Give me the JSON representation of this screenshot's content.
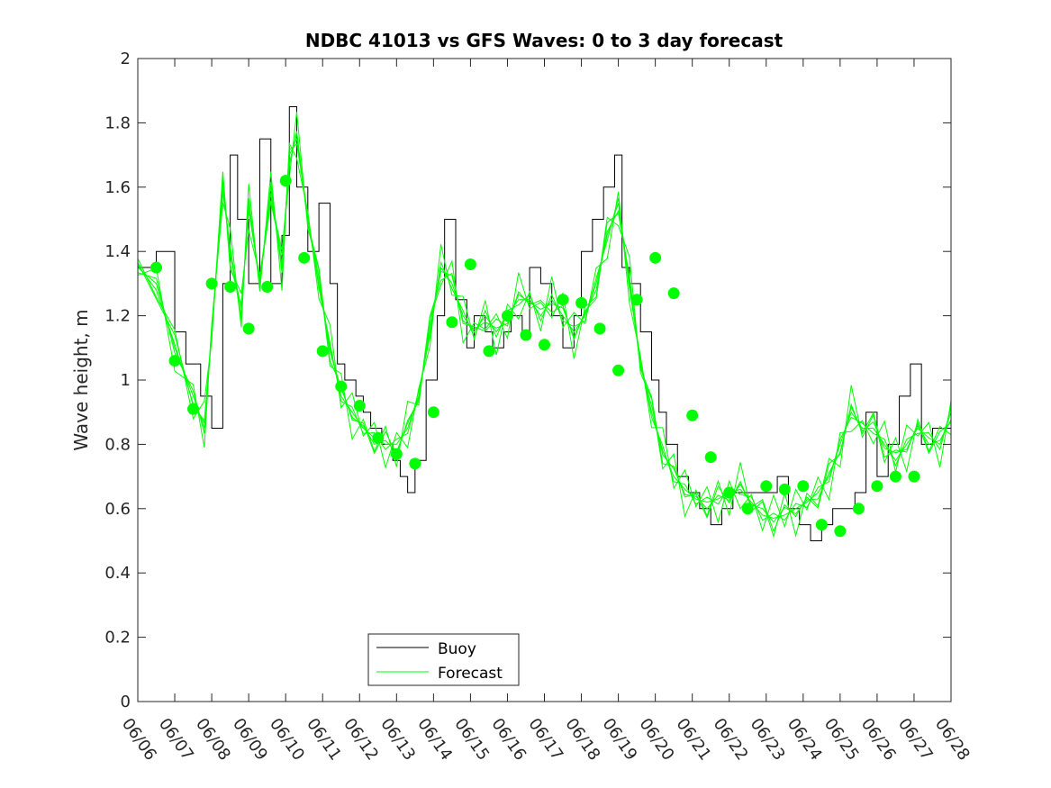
{
  "chart_data": {
    "type": "line",
    "title": "NDBC 41013 vs GFS Waves: 0 to 3 day forecast",
    "ylabel": "Wave height, m",
    "xlabel": "",
    "ylim": [
      0,
      2
    ],
    "yticks": [
      "0",
      "0.2",
      "0.4",
      "0.6",
      "0.8",
      "1",
      "1.2",
      "1.4",
      "1.6",
      "1.8",
      "2"
    ],
    "xticks": [
      "06/06",
      "06/07",
      "06/08",
      "06/09",
      "06/10",
      "06/11",
      "06/12",
      "06/13",
      "06/14",
      "06/15",
      "06/16",
      "06/17",
      "06/18",
      "06/19",
      "06/20",
      "06/21",
      "06/22",
      "06/23",
      "06/24",
      "06/25",
      "06/26",
      "06/27",
      "06/28"
    ],
    "xlim_days": [
      0,
      22
    ],
    "grid": false,
    "legend_position": "bottom-left",
    "colors": {
      "buoy": "#000000",
      "forecast": "#00ff00",
      "markers": "#00ff00"
    },
    "series": [
      {
        "name": "Buoy",
        "style": "line",
        "x": [
          0,
          0.5,
          1,
          1.3,
          1.5,
          1.7,
          2,
          2.3,
          2.5,
          2.7,
          3,
          3.3,
          3.6,
          3.9,
          4.1,
          4.3,
          4.6,
          4.9,
          5.2,
          5.4,
          5.6,
          5.9,
          6.1,
          6.3,
          6.6,
          6.9,
          7.1,
          7.3,
          7.5,
          7.8,
          8.1,
          8.3,
          8.6,
          8.9,
          9.1,
          9.4,
          9.6,
          9.9,
          10.1,
          10.4,
          10.6,
          10.9,
          11.2,
          11.5,
          11.8,
          12,
          12.3,
          12.6,
          12.9,
          13.1,
          13.3,
          13.6,
          13.9,
          14.1,
          14.3,
          14.6,
          14.9,
          15.2,
          15.5,
          15.8,
          16.1,
          16.4,
          16.7,
          17,
          17.3,
          17.6,
          17.9,
          18.2,
          18.5,
          18.8,
          19.1,
          19.4,
          19.7,
          20,
          20.3,
          20.6,
          20.9,
          21.2,
          21.5,
          22
        ],
        "y": [
          1.35,
          1.4,
          1.15,
          1.05,
          1.05,
          0.95,
          0.85,
          1.3,
          1.7,
          1.5,
          1.3,
          1.75,
          1.3,
          1.45,
          1.85,
          1.6,
          1.4,
          1.55,
          1.3,
          1.05,
          1.0,
          0.95,
          0.9,
          0.85,
          0.8,
          0.75,
          0.7,
          0.65,
          0.75,
          1.0,
          1.2,
          1.5,
          1.25,
          1.1,
          1.2,
          1.15,
          1.1,
          1.15,
          1.2,
          1.15,
          1.35,
          1.3,
          1.2,
          1.1,
          1.2,
          1.4,
          1.5,
          1.6,
          1.7,
          1.35,
          1.3,
          1.15,
          1.0,
          0.9,
          0.8,
          0.7,
          0.65,
          0.6,
          0.55,
          0.6,
          0.65,
          0.65,
          0.65,
          0.65,
          0.7,
          0.6,
          0.55,
          0.5,
          0.55,
          0.6,
          0.6,
          0.65,
          0.9,
          0.7,
          0.8,
          0.95,
          1.05,
          0.8,
          0.85,
          0.85
        ]
      },
      {
        "name": "Forecast",
        "style": "line",
        "x": [
          0,
          0.5,
          1,
          1.5,
          1.8,
          2,
          2.3,
          2.5,
          2.8,
          3,
          3.3,
          3.6,
          3.9,
          4.1,
          4.3,
          4.6,
          4.9,
          5.2,
          5.5,
          5.8,
          6.1,
          6.4,
          6.7,
          7,
          7.3,
          7.6,
          7.9,
          8.2,
          8.5,
          8.8,
          9.1,
          9.4,
          9.7,
          10,
          10.3,
          10.6,
          10.9,
          11.2,
          11.5,
          11.8,
          12.1,
          12.4,
          12.7,
          13,
          13.3,
          13.6,
          13.9,
          14.2,
          14.5,
          14.8,
          15.1,
          15.4,
          15.7,
          16,
          16.3,
          16.6,
          16.9,
          17.2,
          17.5,
          17.8,
          18.1,
          18.4,
          18.7,
          19,
          19.3,
          19.6,
          19.9,
          20.2,
          20.5,
          20.8,
          21.1,
          21.4,
          21.7,
          22
        ],
        "y": [
          1.35,
          1.3,
          1.1,
          0.95,
          0.85,
          1.15,
          1.6,
          1.4,
          1.2,
          1.55,
          1.3,
          1.6,
          1.35,
          1.7,
          1.75,
          1.5,
          1.3,
          1.1,
          0.95,
          0.9,
          0.85,
          0.82,
          0.8,
          0.8,
          0.85,
          0.95,
          1.15,
          1.35,
          1.3,
          1.2,
          1.15,
          1.2,
          1.15,
          1.2,
          1.25,
          1.25,
          1.2,
          1.25,
          1.2,
          1.15,
          1.2,
          1.3,
          1.45,
          1.55,
          1.3,
          1.05,
          0.9,
          0.78,
          0.7,
          0.66,
          0.63,
          0.62,
          0.63,
          0.65,
          0.66,
          0.62,
          0.58,
          0.57,
          0.58,
          0.6,
          0.62,
          0.65,
          0.7,
          0.8,
          0.9,
          0.85,
          0.85,
          0.8,
          0.75,
          0.8,
          0.85,
          0.82,
          0.8,
          0.9
        ]
      },
      {
        "name": "",
        "style": "markers",
        "x": [
          0.5,
          1,
          1.5,
          2,
          2.5,
          3,
          3.5,
          4,
          4.5,
          5,
          5.5,
          6,
          6.5,
          7,
          7.5,
          8,
          8.5,
          9,
          9.5,
          10,
          10.5,
          11,
          11.5,
          12,
          12.5,
          13,
          13.5,
          14,
          14.5,
          15,
          15.5,
          16,
          16.5,
          17,
          17.5,
          18,
          18.5,
          19,
          19.5,
          20,
          20.5,
          21
        ],
        "y": [
          1.35,
          1.06,
          0.91,
          1.3,
          1.29,
          1.16,
          1.29,
          1.62,
          1.38,
          1.09,
          0.98,
          0.92,
          0.82,
          0.77,
          0.74,
          0.9,
          1.18,
          1.36,
          1.09,
          1.2,
          1.14,
          1.11,
          1.25,
          1.24,
          1.16,
          1.03,
          1.25,
          1.38,
          1.27,
          0.89,
          0.76,
          0.65,
          0.6,
          0.67,
          0.66,
          0.67,
          0.55,
          0.53,
          0.6,
          0.67,
          0.7,
          0.7
        ]
      }
    ],
    "legend": {
      "entries": [
        "Buoy",
        "Forecast"
      ]
    }
  }
}
